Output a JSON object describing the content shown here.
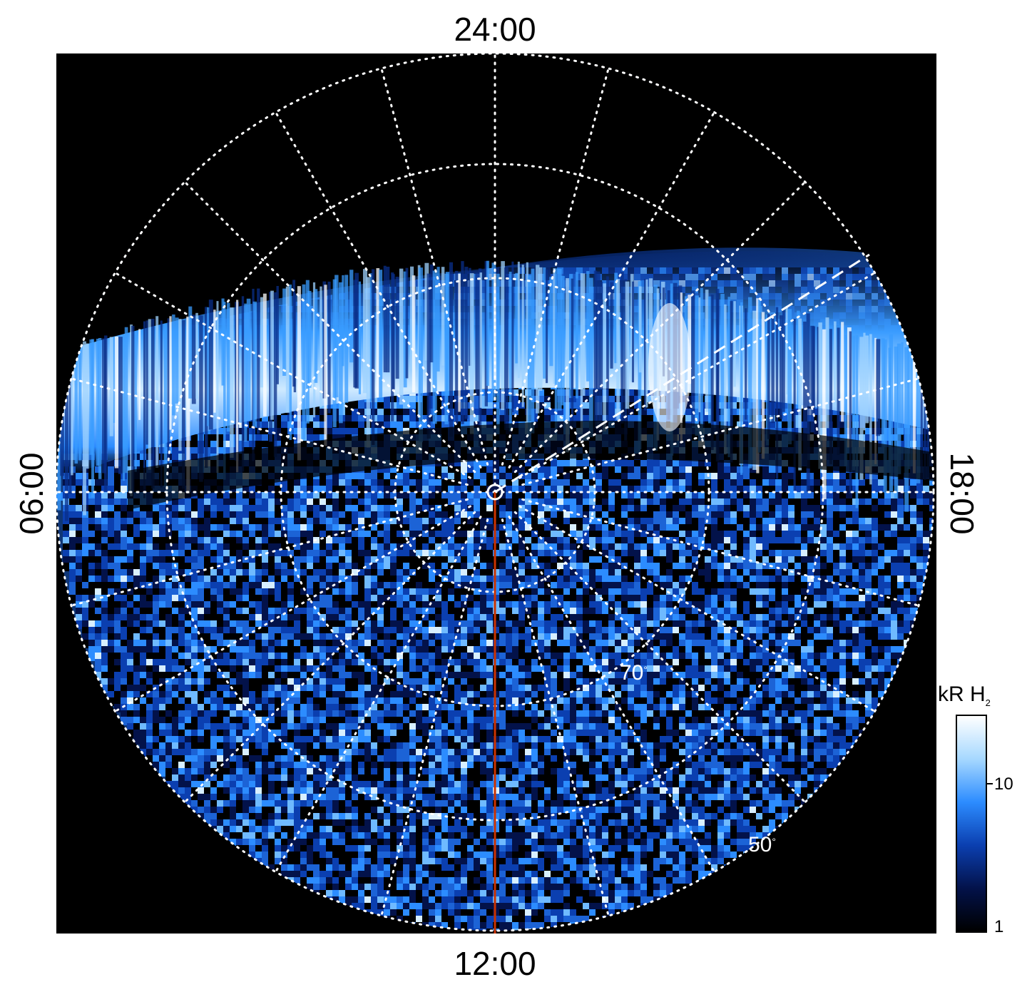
{
  "local_time_labels": {
    "top": "24:00",
    "bottom": "12:00",
    "left": "06:00",
    "right": "18:00"
  },
  "latitude_labels": [
    {
      "text": "70",
      "unit": "°"
    },
    {
      "text": "50",
      "unit": "°"
    }
  ],
  "colorbar": {
    "title": "kR H",
    "title_subscript": "2",
    "tick_labels": [
      "10",
      "1"
    ],
    "colors": [
      "#ffffff",
      "#a6d8ff",
      "#2c8cff",
      "#0b3fb0",
      "#03124a",
      "#000000"
    ]
  },
  "colors": {
    "background": "#000000",
    "grid": "#ffffff",
    "meridian_line": "#cc3300",
    "aurora_bright": "#e6f4ff",
    "aurora_mid": "#3a9cff",
    "aurora_dark": "#0a2f8a"
  }
}
